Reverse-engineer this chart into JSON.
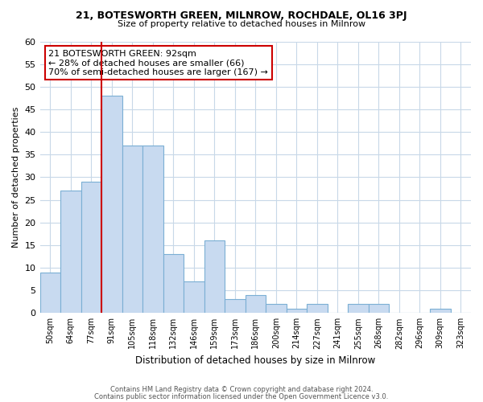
{
  "title": "21, BOTESWORTH GREEN, MILNROW, ROCHDALE, OL16 3PJ",
  "subtitle": "Size of property relative to detached houses in Milnrow",
  "xlabel": "Distribution of detached houses by size in Milnrow",
  "ylabel": "Number of detached properties",
  "bin_labels": [
    "50sqm",
    "64sqm",
    "77sqm",
    "91sqm",
    "105sqm",
    "118sqm",
    "132sqm",
    "146sqm",
    "159sqm",
    "173sqm",
    "186sqm",
    "200sqm",
    "214sqm",
    "227sqm",
    "241sqm",
    "255sqm",
    "268sqm",
    "282sqm",
    "296sqm",
    "309sqm",
    "323sqm"
  ],
  "bar_heights": [
    9,
    27,
    29,
    48,
    37,
    37,
    13,
    7,
    16,
    3,
    4,
    2,
    1,
    2,
    0,
    2,
    2,
    0,
    0,
    1,
    0
  ],
  "bar_color": "#c8daf0",
  "bar_edge_color": "#7bafd4",
  "property_line_color": "#cc0000",
  "annotation_line1": "21 BOTESWORTH GREEN: 92sqm",
  "annotation_line2": "← 28% of detached houses are smaller (66)",
  "annotation_line3": "70% of semi-detached houses are larger (167) →",
  "annotation_box_edge_color": "#cc0000",
  "annotation_box_face_color": "#ffffff",
  "footer_line1": "Contains HM Land Registry data © Crown copyright and database right 2024.",
  "footer_line2": "Contains public sector information licensed under the Open Government Licence v3.0.",
  "ylim": [
    0,
    60
  ],
  "yticks": [
    0,
    5,
    10,
    15,
    20,
    25,
    30,
    35,
    40,
    45,
    50,
    55,
    60
  ],
  "background_color": "#ffffff",
  "grid_color": "#c8d8e8"
}
